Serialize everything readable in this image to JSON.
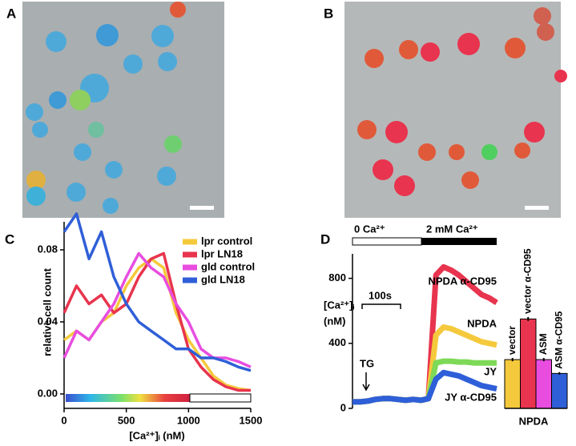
{
  "panel_labels": [
    "A",
    "B",
    "C",
    "D"
  ],
  "chart_data": [
    {
      "type": "line",
      "ylabel": "relative cell count",
      "xlabel": "[Ca²⁺]ᵢ (nM)",
      "x": [
        0,
        100,
        200,
        300,
        400,
        500,
        600,
        700,
        800,
        900,
        1000,
        1100,
        1200,
        1300,
        1400,
        1500
      ],
      "xlim": [
        0,
        1500
      ],
      "ylim": [
        -0.008,
        0.1
      ],
      "xticks": [
        0,
        500,
        1000,
        1500
      ],
      "yticks": [
        {
          "value": 0,
          "label": "0.00"
        },
        0.04,
        0.08
      ],
      "legend": "upper right",
      "series": [
        {
          "name": "lpr control",
          "color": "#f5c93c",
          "values": [
            0.03,
            0.035,
            0.03,
            0.04,
            0.045,
            0.06,
            0.07,
            0.075,
            0.07,
            0.045,
            0.03,
            0.02,
            0.01,
            0.005,
            0.003,
            0.002
          ]
        },
        {
          "name": "lpr LN18",
          "color": "#e8344e",
          "values": [
            0.045,
            0.06,
            0.05,
            0.055,
            0.045,
            0.05,
            0.065,
            0.075,
            0.078,
            0.05,
            0.025,
            0.015,
            0.008,
            0.004,
            0.002,
            0.002
          ]
        },
        {
          "name": "gld control",
          "color": "#e84de0",
          "values": [
            0.02,
            0.035,
            0.03,
            0.04,
            0.05,
            0.065,
            0.078,
            0.07,
            0.065,
            0.05,
            0.04,
            0.025,
            0.02,
            0.02,
            0.018,
            0.015
          ]
        },
        {
          "name": "gld LN18",
          "color": "#2f5fd8",
          "values": [
            0.09,
            0.1,
            0.075,
            0.09,
            0.065,
            0.05,
            0.04,
            0.035,
            0.03,
            0.025,
            0.025,
            0.02,
            0.02,
            0.018,
            0.015,
            0.013
          ]
        }
      ]
    },
    {
      "type": "line",
      "ylabel": [
        "[Ca²⁺]ᵢ",
        "(nM)"
      ],
      "ylim": [
        0,
        1000
      ],
      "yticks": [
        0,
        400,
        800
      ],
      "annotations": [
        "0 Ca²⁺",
        "2 mM Ca²⁺",
        "100s",
        "TG"
      ],
      "series": [
        {
          "name": "NPDA α-CD95",
          "color": "#e8344e",
          "values": [
            40,
            40,
            45,
            55,
            60,
            60,
            55,
            50,
            55,
            50,
            60,
            820,
            870,
            850,
            820,
            780,
            740,
            700,
            680,
            650
          ]
        },
        {
          "name": "NPDA",
          "color": "#f5c93c",
          "values": [
            40,
            40,
            45,
            55,
            60,
            60,
            55,
            50,
            55,
            50,
            60,
            450,
            500,
            490,
            470,
            450,
            430,
            410,
            400,
            390
          ]
        },
        {
          "name": "JY",
          "color": "#7ed957",
          "values": [
            40,
            40,
            45,
            55,
            60,
            60,
            55,
            50,
            55,
            50,
            60,
            280,
            290,
            290,
            285,
            285,
            280,
            280,
            280,
            280
          ]
        },
        {
          "name": "JY α-CD95",
          "color": "#2f5fd8",
          "values": [
            40,
            40,
            45,
            55,
            60,
            60,
            55,
            50,
            55,
            50,
            60,
            180,
            220,
            210,
            200,
            180,
            160,
            140,
            130,
            120
          ]
        }
      ]
    },
    {
      "type": "bar",
      "xlabel": "NPDA",
      "ylim": [
        0,
        1000
      ],
      "categories": [
        "vector",
        "vector α-CD95",
        "ASM",
        "ASM α-CD95"
      ],
      "values": [
        300,
        550,
        300,
        215
      ],
      "errors": [
        10,
        12,
        10,
        8
      ],
      "colors": [
        "#f5c93c",
        "#e8344e",
        "#e84de0",
        "#2f5fd8"
      ]
    }
  ]
}
